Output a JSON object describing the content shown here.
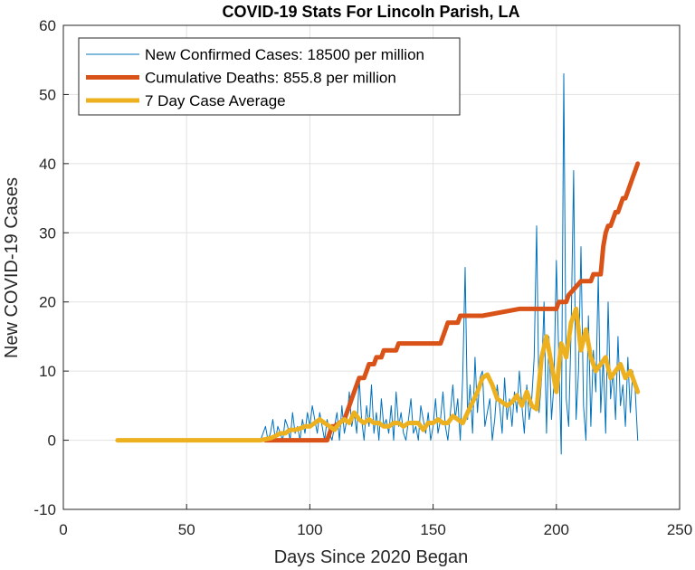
{
  "chart_data": {
    "type": "line",
    "title": "COVID-19 Stats For Lincoln Parish, LA",
    "xlabel": "Days Since 2020 Began",
    "ylabel": "New COVID-19 Cases",
    "xlim": [
      0,
      250
    ],
    "ylim": [
      -10,
      60
    ],
    "xticks": [
      "0",
      "50",
      "100",
      "150",
      "200",
      "250"
    ],
    "yticks": [
      "-10",
      "0",
      "10",
      "20",
      "30",
      "40",
      "50",
      "60"
    ],
    "grid": true,
    "legend_position": "top-left",
    "series": [
      {
        "name": "New Confirmed Cases: 18500 per million",
        "color": "#0072BD",
        "line_width": "thin",
        "x": [
          22,
          30,
          40,
          50,
          60,
          70,
          80,
          82,
          83,
          84,
          85,
          86,
          87,
          88,
          89,
          90,
          91,
          92,
          93,
          94,
          95,
          96,
          97,
          98,
          99,
          100,
          101,
          102,
          103,
          104,
          105,
          106,
          107,
          108,
          109,
          110,
          111,
          112,
          113,
          114,
          115,
          116,
          117,
          118,
          119,
          120,
          121,
          122,
          123,
          124,
          125,
          126,
          127,
          128,
          129,
          130,
          131,
          132,
          133,
          134,
          135,
          136,
          137,
          138,
          139,
          140,
          141,
          142,
          143,
          144,
          145,
          146,
          147,
          148,
          149,
          150,
          151,
          152,
          153,
          154,
          155,
          156,
          157,
          158,
          159,
          160,
          161,
          162,
          163,
          164,
          165,
          166,
          167,
          168,
          169,
          170,
          171,
          172,
          173,
          174,
          175,
          176,
          177,
          178,
          179,
          180,
          181,
          182,
          183,
          184,
          185,
          186,
          187,
          188,
          189,
          190,
          191,
          192,
          193,
          194,
          195,
          196,
          197,
          198,
          199,
          200,
          201,
          202,
          203,
          204,
          205,
          206,
          207,
          208,
          209,
          210,
          211,
          212,
          213,
          214,
          215,
          216,
          217,
          218,
          219,
          220,
          221,
          222,
          223,
          224,
          225,
          226,
          227,
          228,
          229,
          230,
          231,
          232,
          233
        ],
        "y": [
          0,
          0,
          0,
          0,
          0,
          0,
          0,
          2,
          0,
          1,
          3,
          0,
          2,
          1,
          0,
          3,
          2,
          0,
          4,
          1,
          2,
          0,
          3,
          1,
          4,
          2,
          5,
          3,
          1,
          4,
          2,
          0,
          3,
          1,
          0,
          2,
          4,
          0,
          5,
          1,
          3,
          7,
          2,
          4,
          1,
          9,
          3,
          0,
          5,
          2,
          8,
          1,
          4,
          0,
          6,
          2,
          3,
          1,
          5,
          0,
          7,
          2,
          4,
          1,
          0,
          3,
          6,
          1,
          2,
          0,
          5,
          3,
          1,
          4,
          0,
          2,
          6,
          1,
          3,
          7,
          2,
          0,
          4,
          8,
          3,
          6,
          0,
          9,
          25,
          3,
          8,
          1,
          12,
          4,
          9,
          10,
          2,
          4,
          6,
          0,
          3,
          8,
          5,
          1,
          9,
          3,
          6,
          2,
          7,
          4,
          10,
          5,
          1,
          8,
          3,
          6,
          12,
          31,
          4,
          9,
          20,
          1,
          15,
          3,
          8,
          26,
          12,
          -2,
          53,
          6,
          2,
          16,
          39,
          3,
          10,
          28,
          5,
          0,
          18,
          2,
          13,
          7,
          24,
          4,
          12,
          1,
          20,
          6,
          10,
          3,
          15,
          5,
          8,
          2,
          12,
          4,
          10,
          7,
          0
        ],
        "note": "daily counts estimated from the plot"
      },
      {
        "name": "Cumulative Deaths: 855.8 per million",
        "color": "#D95319",
        "line_width": "thick",
        "x": [
          82,
          107,
          108,
          109,
          110,
          114,
          115,
          116,
          117,
          118,
          119,
          120,
          122,
          123,
          124,
          126,
          127,
          129,
          130,
          132,
          133,
          135,
          136,
          138,
          139,
          144,
          145,
          153,
          154,
          155,
          156,
          160,
          161,
          164,
          165,
          170,
          185,
          186,
          190,
          200,
          201,
          204,
          205,
          210,
          211,
          214,
          215,
          218,
          219,
          220,
          221,
          222,
          223,
          224,
          225,
          226,
          227,
          228,
          229,
          230,
          231,
          232,
          233
        ],
        "y": [
          0,
          0,
          1,
          2,
          2,
          3,
          4,
          5,
          6,
          7,
          8,
          9,
          9,
          10,
          11,
          11,
          12,
          12,
          13,
          13,
          13,
          13,
          14,
          14,
          14,
          14,
          14,
          14,
          15,
          16,
          17,
          17,
          18,
          18,
          18,
          18,
          19,
          19,
          19,
          19,
          20,
          20,
          21,
          23,
          23,
          23,
          24,
          24,
          28,
          30,
          31,
          31,
          32,
          33,
          33,
          34,
          35,
          35,
          36,
          37,
          38,
          39,
          40
        ]
      },
      {
        "name": "7 Day Case Average",
        "color": "#EDB120",
        "line_width": "thick",
        "x": [
          22,
          40,
          60,
          80,
          84,
          86,
          88,
          90,
          92,
          94,
          96,
          98,
          100,
          102,
          104,
          106,
          108,
          110,
          112,
          114,
          116,
          118,
          120,
          122,
          124,
          126,
          128,
          130,
          132,
          134,
          136,
          138,
          140,
          142,
          144,
          146,
          148,
          150,
          152,
          154,
          156,
          158,
          160,
          162,
          164,
          166,
          168,
          170,
          172,
          174,
          176,
          178,
          180,
          182,
          184,
          186,
          188,
          190,
          192,
          194,
          196,
          198,
          200,
          202,
          204,
          206,
          208,
          210,
          212,
          214,
          216,
          218,
          220,
          222,
          224,
          226,
          228,
          230,
          232,
          233
        ],
        "y": [
          0,
          0,
          0,
          0,
          0.3,
          0.6,
          1,
          1,
          1.5,
          1.5,
          1.7,
          2,
          2,
          2.5,
          3,
          2.5,
          2,
          1.5,
          2.5,
          3,
          2.5,
          4,
          3,
          2.5,
          3,
          2.5,
          2.5,
          2,
          2,
          2.5,
          2.5,
          2,
          2.5,
          2.5,
          2.5,
          1.5,
          2.5,
          2.5,
          3,
          2.5,
          2.5,
          3.5,
          3,
          2.5,
          4,
          5.5,
          7,
          9,
          9.5,
          8,
          6,
          5.5,
          5,
          5.5,
          6.5,
          5,
          7,
          5,
          4.5,
          12,
          15,
          11,
          7,
          14,
          12,
          17,
          19,
          13,
          16,
          12,
          10,
          11,
          12,
          9,
          10,
          11,
          9,
          10,
          8,
          7
        ]
      }
    ]
  }
}
